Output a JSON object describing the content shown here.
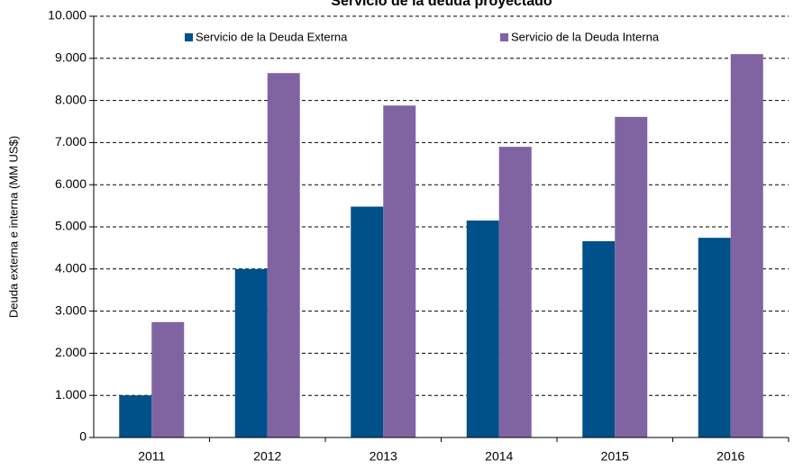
{
  "chart_data": {
    "type": "bar",
    "title": "Servicio de la deuda proyectado",
    "y_label": "Deuda externa e interna (MM US$)",
    "categories": [
      "2011",
      "2012",
      "2013",
      "2014",
      "2015",
      "2016"
    ],
    "series": [
      {
        "name": "Servicio de la Deuda Externa",
        "color": "#00508a",
        "values": [
          1000,
          4000,
          5480,
          5150,
          4660,
          4740
        ]
      },
      {
        "name": "Servicio de la Deuda Interna",
        "color": "#8064a2",
        "values": [
          2740,
          8650,
          7880,
          6900,
          7610,
          9100
        ]
      }
    ],
    "ylim": [
      0,
      10000
    ],
    "yticks": [
      0,
      {
        "value": 1000,
        "label": "1.000"
      },
      {
        "value": 2000,
        "label": "2.000"
      },
      {
        "value": 3000,
        "label": "3.000"
      },
      {
        "value": 4000,
        "label": "4.000"
      },
      {
        "value": 5000,
        "label": "5.000"
      },
      {
        "value": 6000,
        "label": "6.000"
      },
      {
        "value": 7000,
        "label": "7.000"
      },
      {
        "value": 8000,
        "label": "8.000"
      },
      {
        "value": 9000,
        "label": "9.000"
      },
      {
        "value": 10000,
        "label": "10.000"
      }
    ],
    "grid": true,
    "legend": "top"
  }
}
